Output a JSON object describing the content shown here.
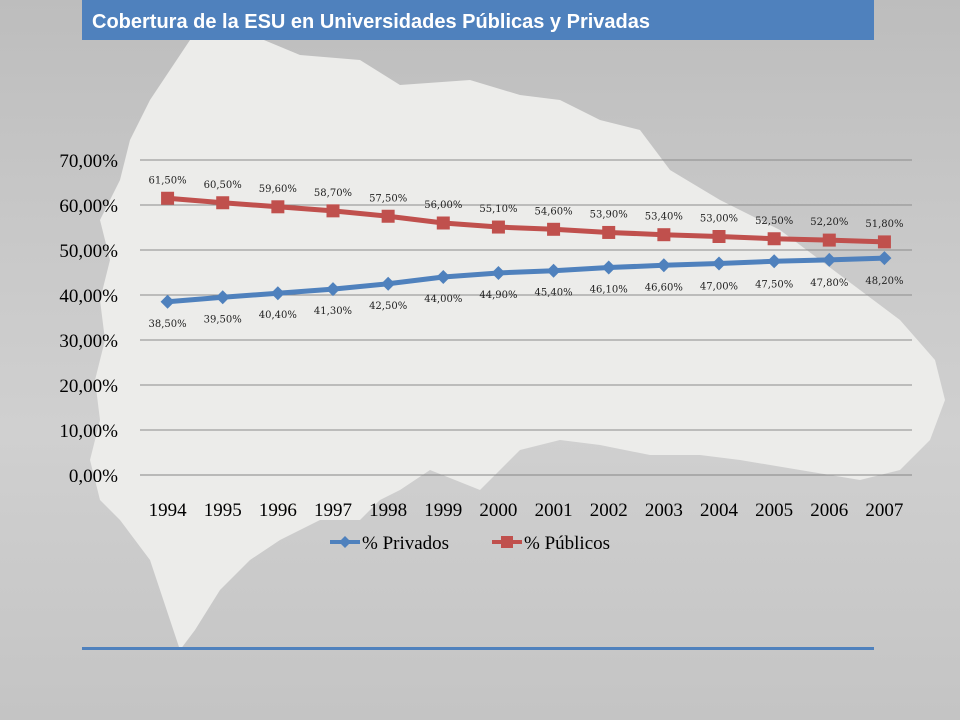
{
  "header": {
    "title": "Cobertura de la ESU en Universidades Públicas y Privadas"
  },
  "colors": {
    "accent": "#4f81bd",
    "privados": "#4f81bd",
    "publicos": "#c0504d"
  },
  "chart_data": {
    "type": "line",
    "title": "",
    "xlabel": "",
    "ylabel": "",
    "x": [
      "1994",
      "1995",
      "1996",
      "1997",
      "1998",
      "1999",
      "2000",
      "2001",
      "2002",
      "2003",
      "2004",
      "2005",
      "2006",
      "2007"
    ],
    "ylim": [
      0,
      70
    ],
    "yticks": [
      "0,00%",
      "10,00%",
      "20,00%",
      "30,00%",
      "40,00%",
      "50,00%",
      "60,00%",
      "70,00%"
    ],
    "grid": true,
    "legend_position": "bottom",
    "series": [
      {
        "name": "% Privados",
        "color": "#4f81bd",
        "marker": "diamond",
        "values": [
          38.5,
          39.5,
          40.4,
          41.3,
          42.5,
          44.0,
          44.9,
          45.4,
          46.1,
          46.6,
          47.0,
          47.5,
          47.8,
          48.2
        ],
        "labels": [
          "38,50%",
          "39,50%",
          "40,40%",
          "41,30%",
          "42,50%",
          "44,00%",
          "44,90%",
          "45,40%",
          "46,10%",
          "46,60%",
          "47,00%",
          "47,50%",
          "47,80%",
          "48,20%"
        ]
      },
      {
        "name": "% Públicos",
        "color": "#c0504d",
        "marker": "square",
        "values": [
          61.5,
          60.5,
          59.6,
          58.7,
          57.5,
          56.0,
          55.1,
          54.6,
          53.9,
          53.4,
          53.0,
          52.5,
          52.2,
          51.8
        ],
        "labels": [
          "61,50%",
          "60,50%",
          "59,60%",
          "58,70%",
          "57,50%",
          "56,00%",
          "55,10%",
          "54,60%",
          "53,90%",
          "53,40%",
          "53,00%",
          "52,50%",
          "52,20%",
          "51,80%"
        ]
      }
    ]
  }
}
